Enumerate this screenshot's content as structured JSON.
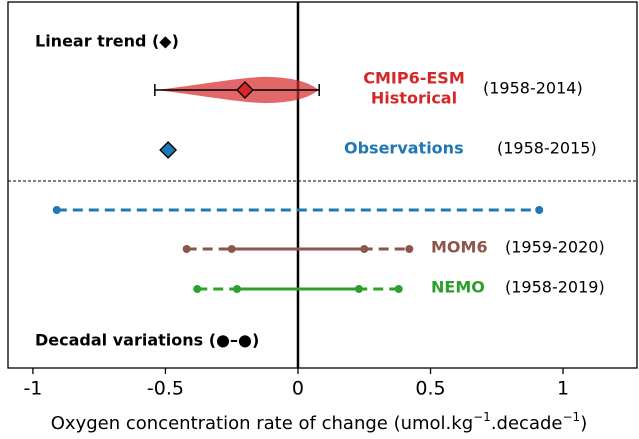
{
  "chart_data": {
    "type": "range",
    "trend_title": "Linear trend (◆)",
    "decadal_title": "Decadal variations (●–●)",
    "x_label": [
      "Oxygen concentration rate of change (umol.kg",
      "−1",
      ".decade",
      "−1",
      ")"
    ],
    "xlim": [
      -1.094,
      1.279
    ],
    "xticks": [
      -1,
      -0.5,
      0,
      0.5,
      1
    ],
    "series": [
      {
        "name": [
          "CMIP6-ESM",
          "Historical"
        ],
        "period": "(1958-2014)",
        "color": "#d62728",
        "kind": "violin",
        "value": -0.2,
        "min": -0.54,
        "max": 0.08
      },
      {
        "name": "Observations",
        "period": "(1958-2015)",
        "color": "#1f77b4",
        "kind": "diamond",
        "value": -0.49
      },
      {
        "color": "#1f77b4",
        "kind": "decadal",
        "outer": [
          -0.91,
          0.91
        ]
      },
      {
        "name": "MOM6",
        "period": "(1959-2020)",
        "color": "#8c564b",
        "kind": "decadal",
        "outer": [
          -0.42,
          0.42
        ],
        "inner": [
          -0.25,
          0.25
        ]
      },
      {
        "name": "NEMO",
        "period": "(1958-2019)",
        "color": "#2ca02c",
        "kind": "decadal",
        "outer": [
          -0.38,
          0.38
        ],
        "inner": [
          -0.23,
          0.23
        ]
      }
    ]
  }
}
